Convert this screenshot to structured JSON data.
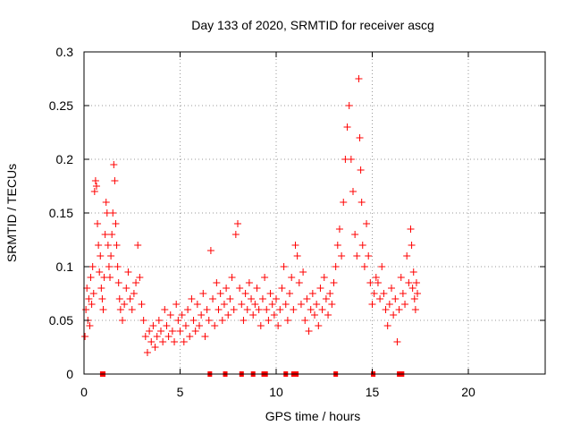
{
  "chart_data": {
    "type": "scatter",
    "title": "Day 133 of 2020, SRMTID for receiver ascg",
    "xlabel": "GPS time / hours",
    "ylabel": "SRMTID / TECUs",
    "xlim": [
      0,
      24
    ],
    "ylim": [
      0,
      0.3
    ],
    "x_ticks": [
      0,
      5,
      10,
      15,
      20
    ],
    "x_tick_labels": [
      "0",
      "5",
      "10",
      "15",
      "20"
    ],
    "y_ticks": [
      0,
      0.05,
      0.1,
      0.15,
      0.2,
      0.25,
      0.3
    ],
    "y_tick_labels": [
      "0",
      "0.05",
      "0.1",
      "0.15",
      "0.2",
      "0.25",
      "0.3"
    ],
    "grid": true,
    "marker": "+",
    "series": [
      {
        "name": "SRMTID",
        "color": "#ff0000",
        "points": [
          [
            0.05,
            0.035
          ],
          [
            0.1,
            0.06
          ],
          [
            0.15,
            0.08
          ],
          [
            0.2,
            0.05
          ],
          [
            0.25,
            0.07
          ],
          [
            0.3,
            0.045
          ],
          [
            0.35,
            0.09
          ],
          [
            0.4,
            0.065
          ],
          [
            0.45,
            0.1
          ],
          [
            0.5,
            0.075
          ],
          [
            0.55,
            0.17
          ],
          [
            0.6,
            0.18
          ],
          [
            0.65,
            0.175
          ],
          [
            0.7,
            0.14
          ],
          [
            0.75,
            0.12
          ],
          [
            0.8,
            0.095
          ],
          [
            0.85,
            0.11
          ],
          [
            0.9,
            0.08
          ],
          [
            0.95,
            0.07
          ],
          [
            1.0,
            0.06
          ],
          [
            1.05,
            0.09
          ],
          [
            1.1,
            0.13
          ],
          [
            1.15,
            0.16
          ],
          [
            1.2,
            0.15
          ],
          [
            1.25,
            0.12
          ],
          [
            1.3,
            0.1
          ],
          [
            1.35,
            0.09
          ],
          [
            1.4,
            0.11
          ],
          [
            1.45,
            0.13
          ],
          [
            1.5,
            0.15
          ],
          [
            1.55,
            0.195
          ],
          [
            1.6,
            0.18
          ],
          [
            1.65,
            0.14
          ],
          [
            1.7,
            0.12
          ],
          [
            1.75,
            0.1
          ],
          [
            1.8,
            0.085
          ],
          [
            1.85,
            0.07
          ],
          [
            1.9,
            0.06
          ],
          [
            2.0,
            0.05
          ],
          [
            2.1,
            0.065
          ],
          [
            2.2,
            0.08
          ],
          [
            2.3,
            0.095
          ],
          [
            2.4,
            0.07
          ],
          [
            2.5,
            0.06
          ],
          [
            2.6,
            0.075
          ],
          [
            2.7,
            0.085
          ],
          [
            2.8,
            0.12
          ],
          [
            2.9,
            0.09
          ],
          [
            3.0,
            0.065
          ],
          [
            3.1,
            0.05
          ],
          [
            3.2,
            0.035
          ],
          [
            3.3,
            0.02
          ],
          [
            3.4,
            0.04
          ],
          [
            3.5,
            0.03
          ],
          [
            3.6,
            0.045
          ],
          [
            3.7,
            0.025
          ],
          [
            3.8,
            0.035
          ],
          [
            3.9,
            0.05
          ],
          [
            4.0,
            0.04
          ],
          [
            4.1,
            0.03
          ],
          [
            4.2,
            0.06
          ],
          [
            4.3,
            0.045
          ],
          [
            4.4,
            0.035
          ],
          [
            4.5,
            0.055
          ],
          [
            4.6,
            0.04
          ],
          [
            4.7,
            0.03
          ],
          [
            4.8,
            0.065
          ],
          [
            4.9,
            0.05
          ],
          [
            5.0,
            0.04
          ],
          [
            5.1,
            0.055
          ],
          [
            5.2,
            0.03
          ],
          [
            5.3,
            0.045
          ],
          [
            5.4,
            0.06
          ],
          [
            5.5,
            0.035
          ],
          [
            5.6,
            0.07
          ],
          [
            5.7,
            0.05
          ],
          [
            5.8,
            0.04
          ],
          [
            5.9,
            0.065
          ],
          [
            6.0,
            0.045
          ],
          [
            6.1,
            0.055
          ],
          [
            6.2,
            0.075
          ],
          [
            6.3,
            0.035
          ],
          [
            6.4,
            0.06
          ],
          [
            6.5,
            0.05
          ],
          [
            6.6,
            0.115
          ],
          [
            6.7,
            0.07
          ],
          [
            6.8,
            0.045
          ],
          [
            6.9,
            0.085
          ],
          [
            7.0,
            0.06
          ],
          [
            7.1,
            0.075
          ],
          [
            7.2,
            0.05
          ],
          [
            7.3,
            0.065
          ],
          [
            7.4,
            0.08
          ],
          [
            7.5,
            0.055
          ],
          [
            7.6,
            0.07
          ],
          [
            7.7,
            0.09
          ],
          [
            7.8,
            0.06
          ],
          [
            7.9,
            0.13
          ],
          [
            8.0,
            0.14
          ],
          [
            8.1,
            0.08
          ],
          [
            8.2,
            0.065
          ],
          [
            8.3,
            0.05
          ],
          [
            8.4,
            0.075
          ],
          [
            8.5,
            0.06
          ],
          [
            8.6,
            0.085
          ],
          [
            8.7,
            0.07
          ],
          [
            8.8,
            0.055
          ],
          [
            8.9,
            0.065
          ],
          [
            9.0,
            0.08
          ],
          [
            9.1,
            0.06
          ],
          [
            9.2,
            0.045
          ],
          [
            9.3,
            0.07
          ],
          [
            9.4,
            0.09
          ],
          [
            9.5,
            0.06
          ],
          [
            9.6,
            0.05
          ],
          [
            9.7,
            0.075
          ],
          [
            9.8,
            0.065
          ],
          [
            9.9,
            0.055
          ],
          [
            10.0,
            0.07
          ],
          [
            10.1,
            0.045
          ],
          [
            10.2,
            0.06
          ],
          [
            10.3,
            0.08
          ],
          [
            10.4,
            0.1
          ],
          [
            10.5,
            0.065
          ],
          [
            10.6,
            0.05
          ],
          [
            10.7,
            0.075
          ],
          [
            10.8,
            0.09
          ],
          [
            10.9,
            0.06
          ],
          [
            11.0,
            0.12
          ],
          [
            11.1,
            0.11
          ],
          [
            11.2,
            0.085
          ],
          [
            11.3,
            0.065
          ],
          [
            11.4,
            0.095
          ],
          [
            11.5,
            0.05
          ],
          [
            11.6,
            0.07
          ],
          [
            11.7,
            0.04
          ],
          [
            11.8,
            0.06
          ],
          [
            11.9,
            0.075
          ],
          [
            12.0,
            0.055
          ],
          [
            12.1,
            0.065
          ],
          [
            12.2,
            0.045
          ],
          [
            12.3,
            0.08
          ],
          [
            12.4,
            0.06
          ],
          [
            12.5,
            0.09
          ],
          [
            12.6,
            0.07
          ],
          [
            12.7,
            0.055
          ],
          [
            12.8,
            0.075
          ],
          [
            12.9,
            0.065
          ],
          [
            13.0,
            0.085
          ],
          [
            13.1,
            0.1
          ],
          [
            13.2,
            0.12
          ],
          [
            13.3,
            0.135
          ],
          [
            13.4,
            0.11
          ],
          [
            13.5,
            0.16
          ],
          [
            13.6,
            0.2
          ],
          [
            13.7,
            0.23
          ],
          [
            13.8,
            0.25
          ],
          [
            13.9,
            0.2
          ],
          [
            14.0,
            0.17
          ],
          [
            14.1,
            0.13
          ],
          [
            14.2,
            0.11
          ],
          [
            14.3,
            0.275
          ],
          [
            14.35,
            0.22
          ],
          [
            14.4,
            0.19
          ],
          [
            14.45,
            0.16
          ],
          [
            14.5,
            0.12
          ],
          [
            14.6,
            0.1
          ],
          [
            14.7,
            0.14
          ],
          [
            14.8,
            0.11
          ],
          [
            14.9,
            0.085
          ],
          [
            15.0,
            0.065
          ],
          [
            15.1,
            0.075
          ],
          [
            15.2,
            0.09
          ],
          [
            15.3,
            0.085
          ],
          [
            15.4,
            0.07
          ],
          [
            15.5,
            0.1
          ],
          [
            15.6,
            0.075
          ],
          [
            15.7,
            0.06
          ],
          [
            15.8,
            0.045
          ],
          [
            15.9,
            0.065
          ],
          [
            16.0,
            0.08
          ],
          [
            16.1,
            0.055
          ],
          [
            16.2,
            0.07
          ],
          [
            16.3,
            0.03
          ],
          [
            16.4,
            0.06
          ],
          [
            16.5,
            0.09
          ],
          [
            16.6,
            0.075
          ],
          [
            16.7,
            0.065
          ],
          [
            16.8,
            0.11
          ],
          [
            16.9,
            0.085
          ],
          [
            17.0,
            0.135
          ],
          [
            17.05,
            0.12
          ],
          [
            17.1,
            0.08
          ],
          [
            17.15,
            0.095
          ],
          [
            17.2,
            0.07
          ],
          [
            17.25,
            0.06
          ],
          [
            17.3,
            0.085
          ],
          [
            17.35,
            0.075
          ]
        ]
      }
    ],
    "baseline_markers": {
      "color": "#ff0000",
      "y": 0,
      "x": [
        0.95,
        1.0,
        6.55,
        7.35,
        8.2,
        8.8,
        9.35,
        9.45,
        10.5,
        10.9,
        11.05,
        13.1,
        15.05,
        16.4,
        16.55
      ]
    }
  }
}
